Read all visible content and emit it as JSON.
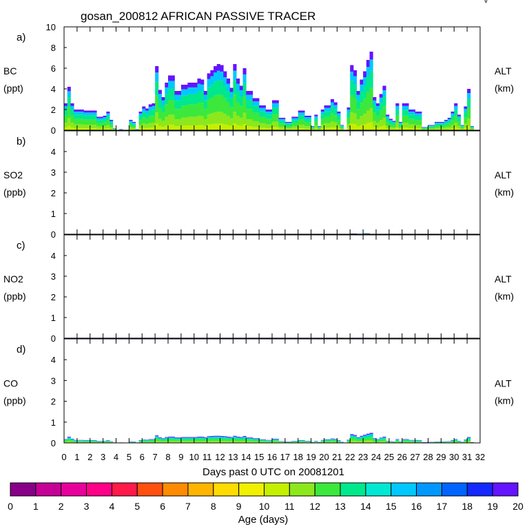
{
  "title": "gosan_200812 AFRICAN PASSIVE TRACER",
  "corner_mark": "v",
  "xlabel": "Days past 0 UTC on 20081201",
  "x_ticks": [
    "0",
    "1",
    "2",
    "3",
    "4",
    "5",
    "6",
    "7",
    "8",
    "9",
    "10",
    "11",
    "12",
    "13",
    "14",
    "15",
    "16",
    "17",
    "18",
    "19",
    "20",
    "21",
    "22",
    "23",
    "24",
    "25",
    "26",
    "27",
    "28",
    "29",
    "30",
    "31",
    "32"
  ],
  "colorbar": {
    "label": "Age (days)",
    "ticks": [
      "0",
      "1",
      "2",
      "3",
      "4",
      "5",
      "6",
      "7",
      "8",
      "9",
      "10",
      "11",
      "12",
      "13",
      "14",
      "15",
      "16",
      "17",
      "18",
      "19",
      "20"
    ],
    "colors": [
      "#880088",
      "#c40096",
      "#e8009c",
      "#ff0088",
      "#ff1a4a",
      "#ff5010",
      "#ff8c00",
      "#ffb400",
      "#ffdc00",
      "#f0f000",
      "#c4f000",
      "#8ce81c",
      "#3ce83c",
      "#00e88c",
      "#00e8d2",
      "#00c8ff",
      "#0098ff",
      "#0064ff",
      "#1428ff",
      "#6414ff"
    ]
  },
  "chart_data": [
    {
      "type": "area",
      "panel_label": "a)",
      "ylabel": "BC",
      "yunit": "(ppt)",
      "right_label": "ALT",
      "right_unit": "(km)",
      "ylim": [
        0,
        10
      ],
      "y_ticks": [
        "0",
        "2",
        "4",
        "6",
        "8",
        "10"
      ],
      "y_tick_values": [
        0,
        2,
        4,
        6,
        8,
        10
      ],
      "xlim": [
        0,
        32
      ],
      "x": [
        0.0,
        0.25,
        0.5,
        0.75,
        1.0,
        1.5,
        2.0,
        2.5,
        3.0,
        3.25,
        3.5,
        3.75,
        4.0,
        4.25,
        4.5,
        4.75,
        5.0,
        5.25,
        5.5,
        5.75,
        6.0,
        6.25,
        6.5,
        6.75,
        7.0,
        7.25,
        7.5,
        7.75,
        8.0,
        8.5,
        9.0,
        9.5,
        10.0,
        10.25,
        10.5,
        10.75,
        11.0,
        11.25,
        11.5,
        11.75,
        12.0,
        12.25,
        12.5,
        12.75,
        13.0,
        13.25,
        13.5,
        13.75,
        14.0,
        14.5,
        15.0,
        15.5,
        16.0,
        16.5,
        17.0,
        17.5,
        18.0,
        18.5,
        19.0,
        19.25,
        19.5,
        19.75,
        20.0,
        20.5,
        20.75,
        21.0,
        21.25,
        21.5,
        21.75,
        22.0,
        22.25,
        22.5,
        22.75,
        23.0,
        23.25,
        23.5,
        23.75,
        24.0,
        24.25,
        24.5,
        24.75,
        25.0,
        25.25,
        25.5,
        25.75,
        26.0,
        26.5,
        27.0,
        27.5,
        28.0,
        28.5,
        29.0,
        29.25,
        29.5,
        29.75,
        30.0,
        30.25,
        30.5,
        30.75,
        31.0,
        31.25
      ],
      "series": [
        {
          "values": [
            2.6,
            4.2,
            2.6,
            2.0,
            2.0,
            1.9,
            1.9,
            1.3,
            1.4,
            1.8,
            1.0,
            0.2,
            0.0,
            0.1,
            0.0,
            0.0,
            1.0,
            0.8,
            0.1,
            1.8,
            2.3,
            2.1,
            2.5,
            2.6,
            6.2,
            3.9,
            3.2,
            4.6,
            5.3,
            3.8,
            4.4,
            4.6,
            4.6,
            5.0,
            4.9,
            3.8,
            5.5,
            5.8,
            6.2,
            6.4,
            6.3,
            5.7,
            5.0,
            4.1,
            6.4,
            5.0,
            4.3,
            6.0,
            3.8,
            3.1,
            2.4,
            2.0,
            2.9,
            1.2,
            0.8,
            1.3,
            1.9,
            1.4,
            0.4,
            1.5,
            0.4,
            2.0,
            2.4,
            3.0,
            2.7,
            1.8,
            0.5,
            0.0,
            2.2,
            6.3,
            5.8,
            3.8,
            4.9,
            5.7,
            6.8,
            7.6,
            3.2,
            2.6,
            3.5,
            4.3,
            1.5,
            1.1,
            0.9,
            2.6,
            0.8,
            2.6,
            2.0,
            1.8,
            0.3,
            0.5,
            0.8,
            0.8,
            1.0,
            1.2,
            1.8,
            2.6,
            1.5,
            0.5,
            2.3,
            4.0,
            0.4
          ]
        }
      ]
    },
    {
      "type": "area",
      "panel_label": "b)",
      "ylabel": "SO2",
      "yunit": "(ppb)",
      "right_label": "ALT",
      "right_unit": "(km)",
      "ylim": [
        0,
        5
      ],
      "y_ticks": [
        "0",
        "1",
        "2",
        "3",
        "4"
      ],
      "y_tick_values": [
        0,
        1,
        2,
        3,
        4
      ],
      "xlim": [
        0,
        32
      ],
      "x": [
        21.5,
        22.0,
        22.5,
        23.0,
        23.5
      ],
      "series": [
        {
          "values": [
            0.0,
            0.02,
            0.01,
            0.04,
            0.0
          ]
        }
      ]
    },
    {
      "type": "area",
      "panel_label": "c)",
      "ylabel": "NO2",
      "yunit": "(ppb)",
      "right_label": "ALT",
      "right_unit": "(km)",
      "ylim": [
        0,
        5
      ],
      "y_ticks": [
        "0",
        "1",
        "2",
        "3",
        "4"
      ],
      "y_tick_values": [
        0,
        1,
        2,
        3,
        4
      ],
      "xlim": [
        0,
        32
      ],
      "x": [
        0.0,
        7.0,
        8.0,
        12.0,
        16.0,
        21.5,
        22.0,
        22.75,
        23.0,
        23.5
      ],
      "series": [
        {
          "values": [
            0.01,
            0.01,
            0.01,
            0.01,
            0.01,
            0.0,
            0.01,
            0.01,
            0.01,
            0.0
          ]
        }
      ]
    },
    {
      "type": "area",
      "panel_label": "d)",
      "ylabel": "CO",
      "yunit": "(ppb)",
      "right_label": "ALT",
      "right_unit": "(km)",
      "ylim": [
        0,
        5
      ],
      "y_ticks": [
        "0",
        "1",
        "2",
        "3",
        "4"
      ],
      "y_tick_values": [
        0,
        1,
        2,
        3,
        4
      ],
      "xlim": [
        0,
        32
      ],
      "x": [
        0.0,
        0.25,
        0.5,
        0.75,
        1.0,
        1.5,
        2.0,
        2.5,
        3.0,
        3.25,
        3.5,
        3.75,
        4.0,
        4.25,
        4.5,
        4.75,
        5.0,
        5.25,
        5.5,
        5.75,
        6.0,
        6.25,
        6.5,
        6.75,
        7.0,
        7.25,
        7.5,
        7.75,
        8.0,
        8.5,
        9.0,
        9.5,
        10.0,
        10.25,
        10.5,
        10.75,
        11.0,
        11.25,
        11.5,
        11.75,
        12.0,
        12.25,
        12.5,
        12.75,
        13.0,
        13.25,
        13.5,
        13.75,
        14.0,
        14.5,
        15.0,
        15.5,
        16.0,
        16.5,
        17.0,
        17.5,
        18.0,
        18.5,
        19.0,
        19.25,
        19.5,
        19.75,
        20.0,
        20.5,
        20.75,
        21.0,
        21.25,
        21.5,
        21.75,
        22.0,
        22.25,
        22.5,
        22.75,
        23.0,
        23.25,
        23.5,
        23.75,
        24.0,
        24.25,
        24.5,
        24.75,
        25.0,
        25.25,
        25.5,
        25.75,
        26.0,
        26.5,
        27.0,
        27.5,
        28.0,
        28.5,
        29.0,
        29.25,
        29.5,
        29.75,
        30.0,
        30.25,
        30.5,
        30.75,
        31.0,
        31.25
      ],
      "series": [
        {
          "values": [
            0.18,
            0.3,
            0.2,
            0.14,
            0.14,
            0.13,
            0.13,
            0.09,
            0.1,
            0.13,
            0.07,
            0.01,
            0.0,
            0.01,
            0.0,
            0.0,
            0.07,
            0.06,
            0.01,
            0.13,
            0.16,
            0.15,
            0.18,
            0.18,
            0.36,
            0.27,
            0.22,
            0.28,
            0.3,
            0.26,
            0.28,
            0.28,
            0.28,
            0.3,
            0.3,
            0.27,
            0.32,
            0.33,
            0.34,
            0.34,
            0.33,
            0.32,
            0.3,
            0.28,
            0.34,
            0.3,
            0.28,
            0.33,
            0.26,
            0.22,
            0.17,
            0.14,
            0.2,
            0.08,
            0.06,
            0.09,
            0.13,
            0.1,
            0.03,
            0.1,
            0.03,
            0.14,
            0.17,
            0.21,
            0.19,
            0.13,
            0.04,
            0.0,
            0.15,
            0.42,
            0.38,
            0.27,
            0.34,
            0.39,
            0.44,
            0.48,
            0.22,
            0.18,
            0.25,
            0.3,
            0.1,
            0.08,
            0.06,
            0.18,
            0.06,
            0.18,
            0.14,
            0.13,
            0.02,
            0.04,
            0.06,
            0.06,
            0.07,
            0.08,
            0.13,
            0.18,
            0.1,
            0.04,
            0.16,
            0.28,
            0.03
          ]
        }
      ]
    }
  ]
}
